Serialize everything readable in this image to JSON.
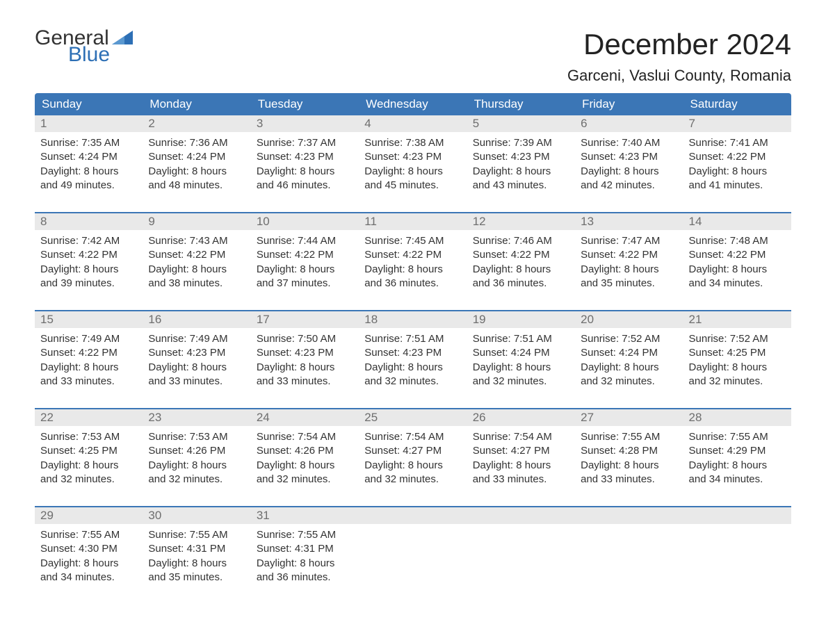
{
  "logo": {
    "general": "General",
    "blue": "Blue"
  },
  "title": "December 2024",
  "location": "Garceni, Vaslui County, Romania",
  "colors": {
    "header_bg": "#3b76b6",
    "header_text": "#ffffff",
    "daynum_bg": "#e9e9e9",
    "daynum_text": "#6e6e6e",
    "body_text": "#333333",
    "logo_blue": "#2d6fb5",
    "page_bg": "#ffffff"
  },
  "weekdays": [
    "Sunday",
    "Monday",
    "Tuesday",
    "Wednesday",
    "Thursday",
    "Friday",
    "Saturday"
  ],
  "weeks": [
    [
      {
        "n": "1",
        "sunrise": "Sunrise: 7:35 AM",
        "sunset": "Sunset: 4:24 PM",
        "d1": "Daylight: 8 hours",
        "d2": "and 49 minutes."
      },
      {
        "n": "2",
        "sunrise": "Sunrise: 7:36 AM",
        "sunset": "Sunset: 4:24 PM",
        "d1": "Daylight: 8 hours",
        "d2": "and 48 minutes."
      },
      {
        "n": "3",
        "sunrise": "Sunrise: 7:37 AM",
        "sunset": "Sunset: 4:23 PM",
        "d1": "Daylight: 8 hours",
        "d2": "and 46 minutes."
      },
      {
        "n": "4",
        "sunrise": "Sunrise: 7:38 AM",
        "sunset": "Sunset: 4:23 PM",
        "d1": "Daylight: 8 hours",
        "d2": "and 45 minutes."
      },
      {
        "n": "5",
        "sunrise": "Sunrise: 7:39 AM",
        "sunset": "Sunset: 4:23 PM",
        "d1": "Daylight: 8 hours",
        "d2": "and 43 minutes."
      },
      {
        "n": "6",
        "sunrise": "Sunrise: 7:40 AM",
        "sunset": "Sunset: 4:23 PM",
        "d1": "Daylight: 8 hours",
        "d2": "and 42 minutes."
      },
      {
        "n": "7",
        "sunrise": "Sunrise: 7:41 AM",
        "sunset": "Sunset: 4:22 PM",
        "d1": "Daylight: 8 hours",
        "d2": "and 41 minutes."
      }
    ],
    [
      {
        "n": "8",
        "sunrise": "Sunrise: 7:42 AM",
        "sunset": "Sunset: 4:22 PM",
        "d1": "Daylight: 8 hours",
        "d2": "and 39 minutes."
      },
      {
        "n": "9",
        "sunrise": "Sunrise: 7:43 AM",
        "sunset": "Sunset: 4:22 PM",
        "d1": "Daylight: 8 hours",
        "d2": "and 38 minutes."
      },
      {
        "n": "10",
        "sunrise": "Sunrise: 7:44 AM",
        "sunset": "Sunset: 4:22 PM",
        "d1": "Daylight: 8 hours",
        "d2": "and 37 minutes."
      },
      {
        "n": "11",
        "sunrise": "Sunrise: 7:45 AM",
        "sunset": "Sunset: 4:22 PM",
        "d1": "Daylight: 8 hours",
        "d2": "and 36 minutes."
      },
      {
        "n": "12",
        "sunrise": "Sunrise: 7:46 AM",
        "sunset": "Sunset: 4:22 PM",
        "d1": "Daylight: 8 hours",
        "d2": "and 36 minutes."
      },
      {
        "n": "13",
        "sunrise": "Sunrise: 7:47 AM",
        "sunset": "Sunset: 4:22 PM",
        "d1": "Daylight: 8 hours",
        "d2": "and 35 minutes."
      },
      {
        "n": "14",
        "sunrise": "Sunrise: 7:48 AM",
        "sunset": "Sunset: 4:22 PM",
        "d1": "Daylight: 8 hours",
        "d2": "and 34 minutes."
      }
    ],
    [
      {
        "n": "15",
        "sunrise": "Sunrise: 7:49 AM",
        "sunset": "Sunset: 4:22 PM",
        "d1": "Daylight: 8 hours",
        "d2": "and 33 minutes."
      },
      {
        "n": "16",
        "sunrise": "Sunrise: 7:49 AM",
        "sunset": "Sunset: 4:23 PM",
        "d1": "Daylight: 8 hours",
        "d2": "and 33 minutes."
      },
      {
        "n": "17",
        "sunrise": "Sunrise: 7:50 AM",
        "sunset": "Sunset: 4:23 PM",
        "d1": "Daylight: 8 hours",
        "d2": "and 33 minutes."
      },
      {
        "n": "18",
        "sunrise": "Sunrise: 7:51 AM",
        "sunset": "Sunset: 4:23 PM",
        "d1": "Daylight: 8 hours",
        "d2": "and 32 minutes."
      },
      {
        "n": "19",
        "sunrise": "Sunrise: 7:51 AM",
        "sunset": "Sunset: 4:24 PM",
        "d1": "Daylight: 8 hours",
        "d2": "and 32 minutes."
      },
      {
        "n": "20",
        "sunrise": "Sunrise: 7:52 AM",
        "sunset": "Sunset: 4:24 PM",
        "d1": "Daylight: 8 hours",
        "d2": "and 32 minutes."
      },
      {
        "n": "21",
        "sunrise": "Sunrise: 7:52 AM",
        "sunset": "Sunset: 4:25 PM",
        "d1": "Daylight: 8 hours",
        "d2": "and 32 minutes."
      }
    ],
    [
      {
        "n": "22",
        "sunrise": "Sunrise: 7:53 AM",
        "sunset": "Sunset: 4:25 PM",
        "d1": "Daylight: 8 hours",
        "d2": "and 32 minutes."
      },
      {
        "n": "23",
        "sunrise": "Sunrise: 7:53 AM",
        "sunset": "Sunset: 4:26 PM",
        "d1": "Daylight: 8 hours",
        "d2": "and 32 minutes."
      },
      {
        "n": "24",
        "sunrise": "Sunrise: 7:54 AM",
        "sunset": "Sunset: 4:26 PM",
        "d1": "Daylight: 8 hours",
        "d2": "and 32 minutes."
      },
      {
        "n": "25",
        "sunrise": "Sunrise: 7:54 AM",
        "sunset": "Sunset: 4:27 PM",
        "d1": "Daylight: 8 hours",
        "d2": "and 32 minutes."
      },
      {
        "n": "26",
        "sunrise": "Sunrise: 7:54 AM",
        "sunset": "Sunset: 4:27 PM",
        "d1": "Daylight: 8 hours",
        "d2": "and 33 minutes."
      },
      {
        "n": "27",
        "sunrise": "Sunrise: 7:55 AM",
        "sunset": "Sunset: 4:28 PM",
        "d1": "Daylight: 8 hours",
        "d2": "and 33 minutes."
      },
      {
        "n": "28",
        "sunrise": "Sunrise: 7:55 AM",
        "sunset": "Sunset: 4:29 PM",
        "d1": "Daylight: 8 hours",
        "d2": "and 34 minutes."
      }
    ],
    [
      {
        "n": "29",
        "sunrise": "Sunrise: 7:55 AM",
        "sunset": "Sunset: 4:30 PM",
        "d1": "Daylight: 8 hours",
        "d2": "and 34 minutes."
      },
      {
        "n": "30",
        "sunrise": "Sunrise: 7:55 AM",
        "sunset": "Sunset: 4:31 PM",
        "d1": "Daylight: 8 hours",
        "d2": "and 35 minutes."
      },
      {
        "n": "31",
        "sunrise": "Sunrise: 7:55 AM",
        "sunset": "Sunset: 4:31 PM",
        "d1": "Daylight: 8 hours",
        "d2": "and 36 minutes."
      },
      null,
      null,
      null,
      null
    ]
  ]
}
